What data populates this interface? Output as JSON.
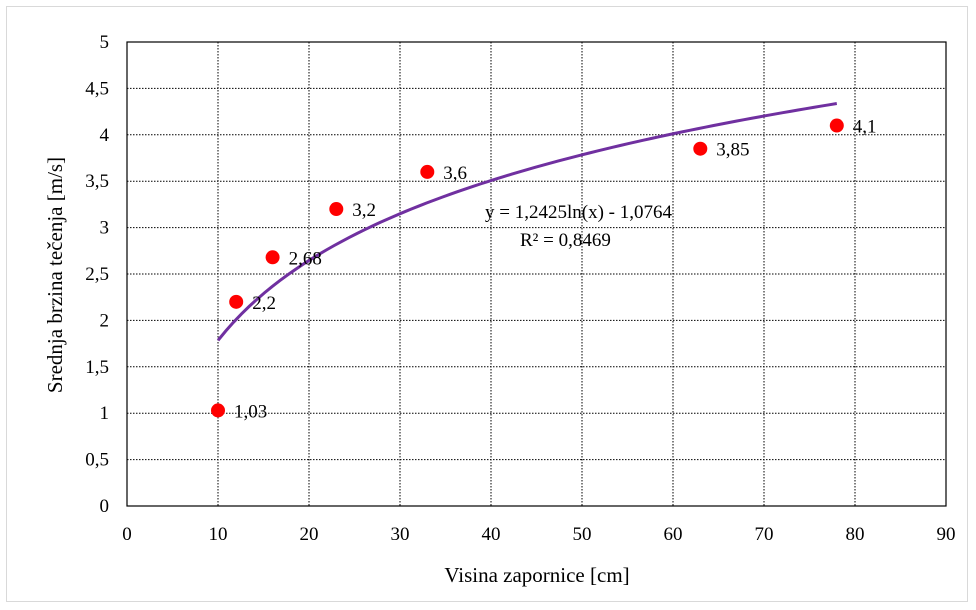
{
  "chart_data": {
    "type": "scatter",
    "xlabel": "Visina zapornice [cm]",
    "ylabel": "Srednja brzina tečenja [m/s]",
    "xlim": [
      0,
      90
    ],
    "ylim": [
      0,
      5
    ],
    "x_ticks": [
      0,
      10,
      20,
      30,
      40,
      50,
      60,
      70,
      80,
      90
    ],
    "y_ticks": [
      0,
      0.5,
      1,
      1.5,
      2,
      2.5,
      3,
      3.5,
      4,
      4.5,
      5
    ],
    "x_tick_labels": [
      "0",
      "10",
      "20",
      "30",
      "40",
      "50",
      "60",
      "70",
      "80",
      "90"
    ],
    "y_tick_labels": [
      "0",
      "0,5",
      "1",
      "1,5",
      "2",
      "2,5",
      "3",
      "3,5",
      "4",
      "4,5",
      "5"
    ],
    "grid": true,
    "series": [
      {
        "marker_color": "#ff0000",
        "points": [
          {
            "x": 10,
            "y": 1.03,
            "label": "1,03"
          },
          {
            "x": 12,
            "y": 2.2,
            "label": "2,2"
          },
          {
            "x": 16,
            "y": 2.68,
            "label": "2,68"
          },
          {
            "x": 23,
            "y": 3.2,
            "label": "3,2"
          },
          {
            "x": 33,
            "y": 3.6,
            "label": "3,6"
          },
          {
            "x": 63,
            "y": 3.85,
            "label": "3,85"
          },
          {
            "x": 78,
            "y": 4.1,
            "label": "4,1"
          }
        ]
      }
    ],
    "trendline": {
      "type": "logarithmic",
      "a": 1.2425,
      "b": -1.0764,
      "x_range": [
        10,
        78
      ],
      "color": "#7030a0",
      "equation": "y = 1,2425ln(x) - 1,0764",
      "r_squared": "R² = 0,8469"
    }
  }
}
